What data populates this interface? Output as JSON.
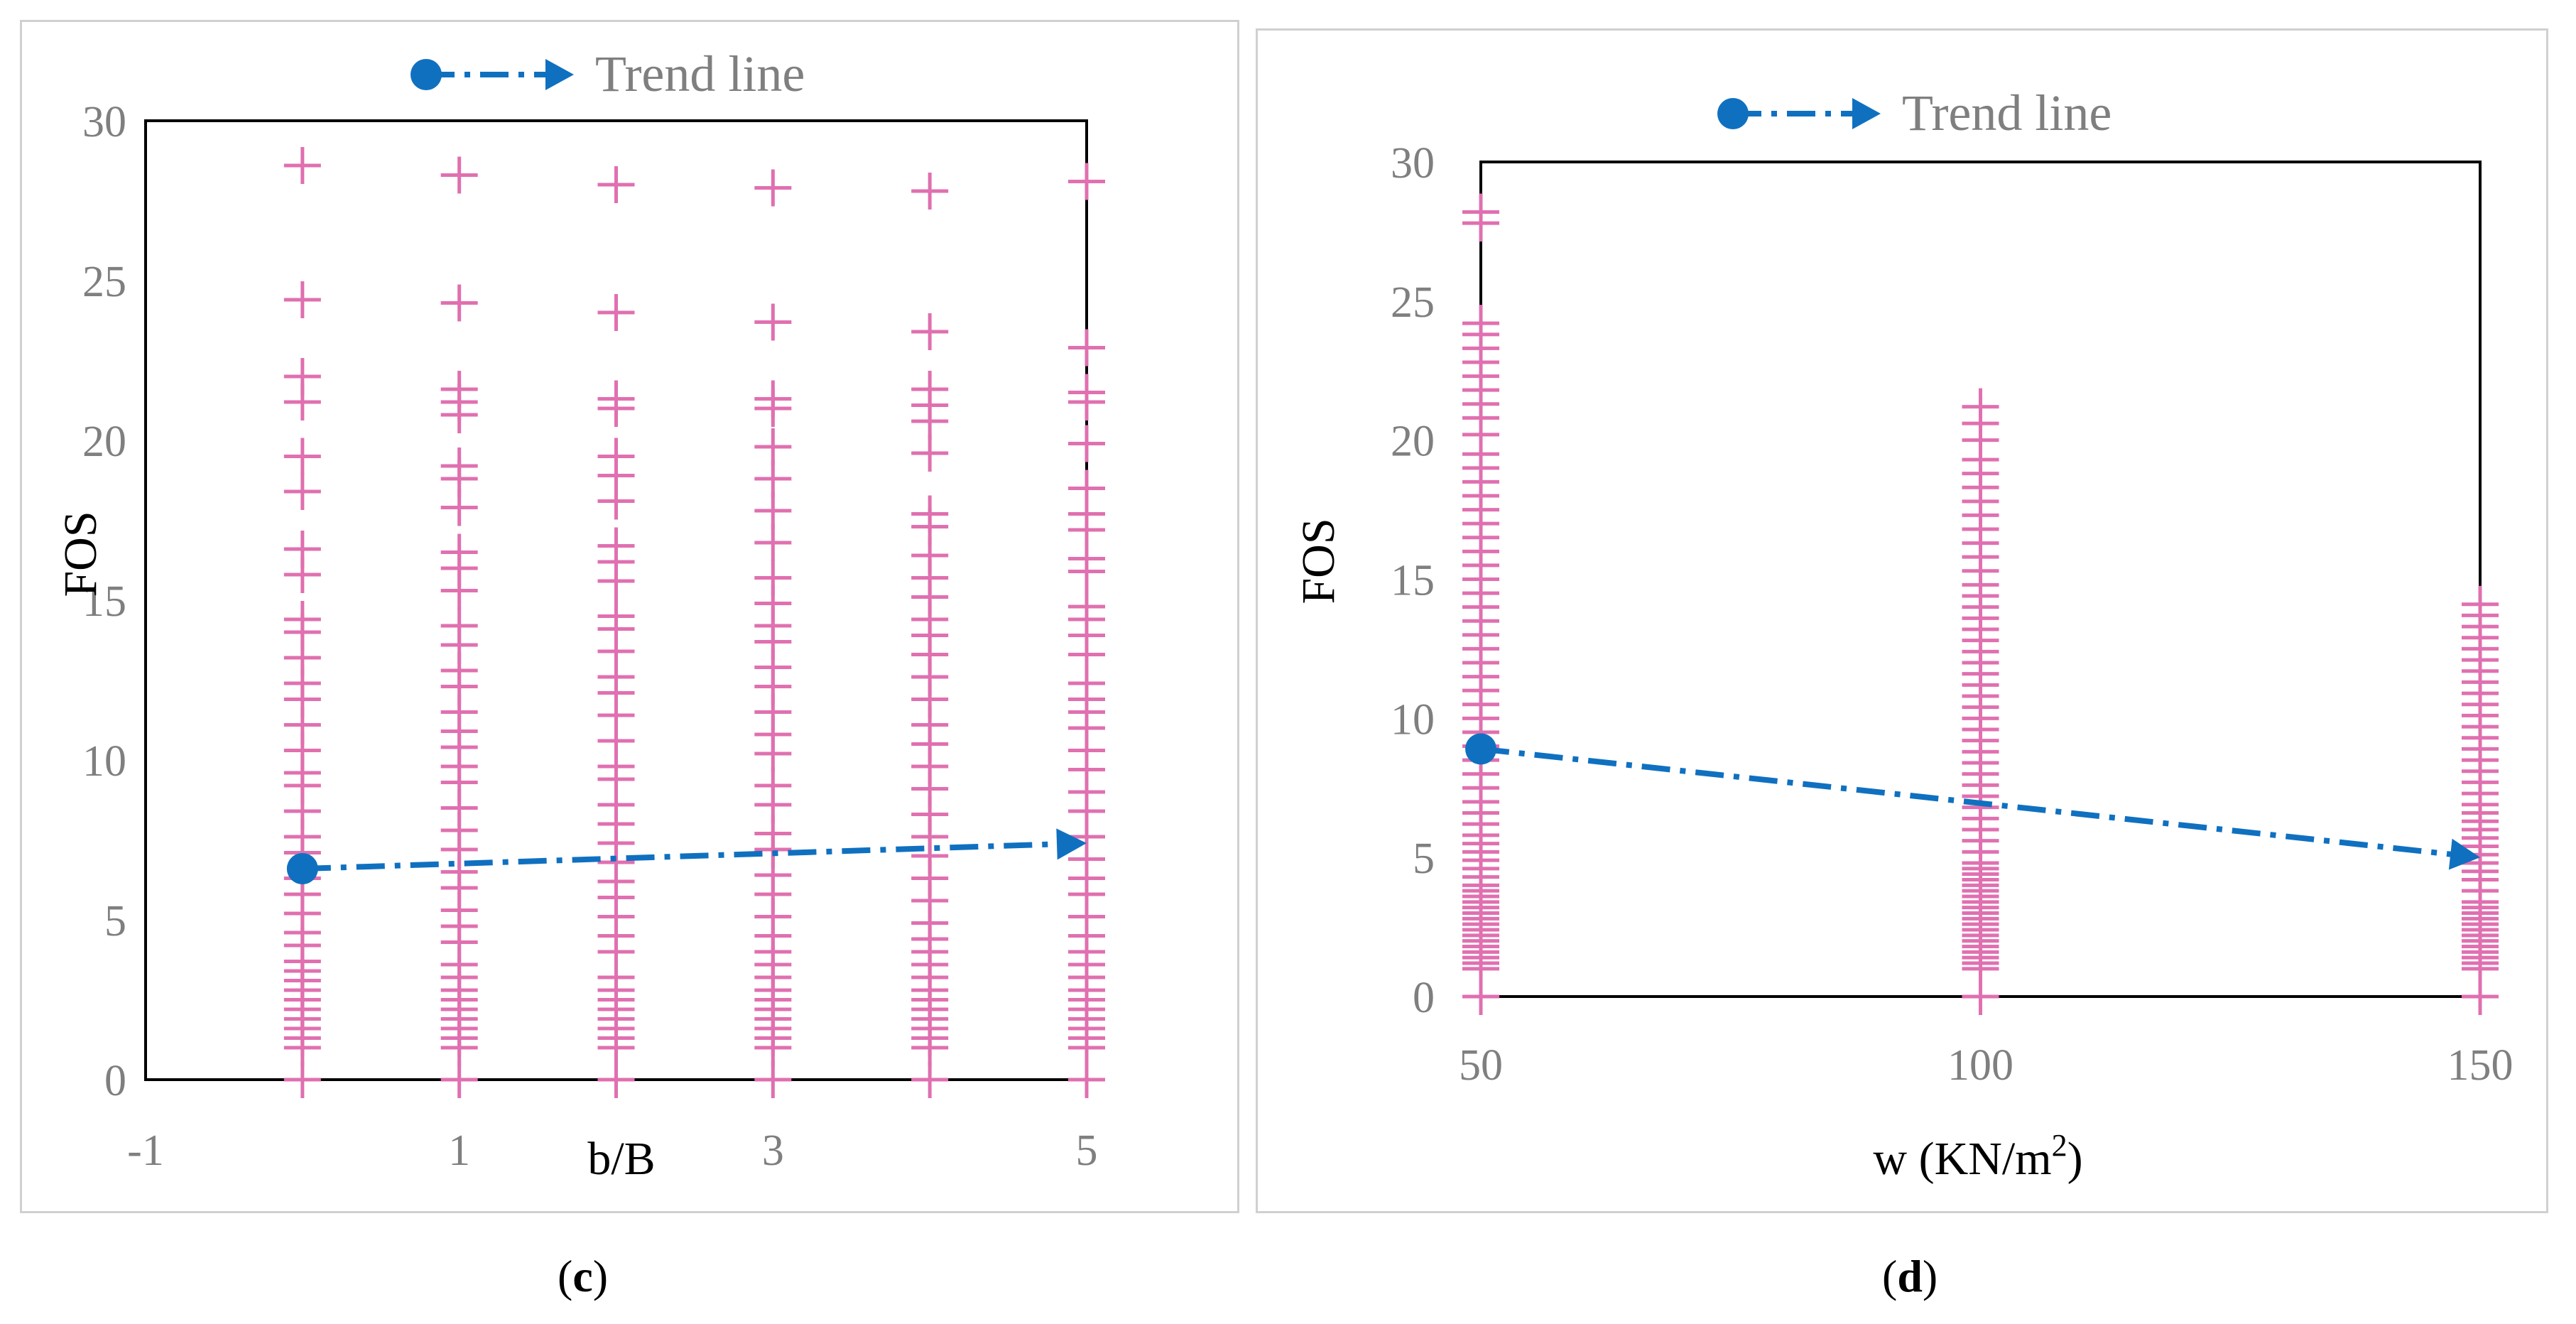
{
  "chart_data": [
    {
      "type": "scatter",
      "panel_label": "c",
      "xlabel": "b/B",
      "ylabel": "FOS",
      "xlim": [
        -1,
        5
      ],
      "ylim": [
        0,
        30
      ],
      "x_ticks": [
        "-1",
        "1",
        "3",
        "5"
      ],
      "y_ticks": [
        "0",
        "5",
        "10",
        "15",
        "20",
        "25",
        "30"
      ],
      "marker_color": "#e070b0",
      "trend_color": "#1070c0",
      "legend": {
        "label": "Trend line",
        "position": "top-center"
      },
      "trend_line": {
        "x": [
          0,
          5
        ],
        "y": [
          6.6,
          7.4
        ]
      },
      "points": [
        {
          "x": 0,
          "y": [
            0,
            1,
            1.3,
            1.6,
            1.9,
            2.2,
            2.5,
            2.8,
            3.1,
            3.4,
            3.7,
            4.2,
            4.6,
            5.2,
            5.8,
            6.3,
            7.1,
            7.6,
            8.4,
            9.2,
            9.6,
            10.3,
            11.1,
            11.9,
            12.4,
            13.2,
            14.0,
            14.4,
            15.8,
            16.6,
            18.4,
            19.5,
            21.2,
            22.0,
            24.4,
            28.6
          ]
        },
        {
          "x": 1,
          "y": [
            0,
            1,
            1.3,
            1.6,
            1.9,
            2.2,
            2.5,
            2.8,
            3.2,
            3.6,
            4.3,
            4.8,
            5.3,
            6.0,
            6.5,
            7.2,
            7.8,
            8.5,
            9.3,
            9.8,
            10.4,
            10.9,
            11.5,
            12.3,
            12.8,
            13.6,
            14.2,
            15.3,
            16.0,
            16.5,
            17.9,
            18.8,
            19.2,
            20.8,
            21.2,
            21.6,
            24.3,
            28.3
          ]
        },
        {
          "x": 2,
          "y": [
            0,
            1,
            1.3,
            1.6,
            1.9,
            2.2,
            2.5,
            2.8,
            3.2,
            4.0,
            4.5,
            5.1,
            5.7,
            6.2,
            6.8,
            7.4,
            8.0,
            8.6,
            9.4,
            9.8,
            10.6,
            11.4,
            12.1,
            12.6,
            13.4,
            14.1,
            14.5,
            15.6,
            16.2,
            16.7,
            18.1,
            18.9,
            19.5,
            21.0,
            21.3,
            24.0,
            28.0
          ]
        },
        {
          "x": 3,
          "y": [
            0,
            1,
            1.3,
            1.6,
            1.9,
            2.2,
            2.5,
            2.8,
            3.2,
            3.6,
            4.0,
            4.5,
            5.1,
            5.8,
            6.4,
            7.2,
            7.7,
            8.6,
            9.2,
            10.2,
            10.8,
            11.5,
            12.3,
            12.9,
            13.7,
            14.2,
            14.9,
            15.7,
            16.8,
            17.8,
            18.8,
            19.8,
            21.0,
            21.3,
            23.7,
            27.9
          ]
        },
        {
          "x": 4,
          "y": [
            0,
            1,
            1.3,
            1.6,
            1.9,
            2.2,
            2.5,
            2.8,
            3.2,
            3.6,
            4.0,
            4.4,
            4.9,
            5.6,
            6.3,
            7.0,
            7.6,
            8.3,
            9.1,
            9.8,
            10.5,
            11.1,
            11.9,
            12.6,
            13.3,
            13.9,
            14.4,
            15.1,
            15.7,
            16.4,
            17.3,
            17.7,
            19.6,
            20.6,
            21.1,
            21.6,
            23.4,
            27.8
          ]
        },
        {
          "x": 5,
          "y": [
            0,
            1,
            1.3,
            1.6,
            1.9,
            2.2,
            2.5,
            2.8,
            3.2,
            3.6,
            4.0,
            4.5,
            5.1,
            5.8,
            6.3,
            6.9,
            7.6,
            8.4,
            9.0,
            9.7,
            10.3,
            11.0,
            11.5,
            11.9,
            12.4,
            13.3,
            13.9,
            14.4,
            14.8,
            15.9,
            16.3,
            17.2,
            17.7,
            18.5,
            19.9,
            21.2,
            21.5,
            22.9,
            28.1
          ]
        }
      ]
    },
    {
      "type": "scatter",
      "panel_label": "d",
      "xlabel": "w (KN/m2)",
      "xlabel_main": "w (KN/m",
      "xlabel_sup": "2",
      "xlabel_end": ")",
      "ylabel": "FOS",
      "xlim": [
        50,
        150
      ],
      "ylim": [
        0,
        30
      ],
      "x_ticks": [
        "50",
        "100",
        "150"
      ],
      "y_ticks": [
        "0",
        "5",
        "10",
        "15",
        "20",
        "25",
        "30"
      ],
      "marker_color": "#e070b0",
      "trend_color": "#1070c0",
      "legend": {
        "label": "Trend line",
        "position": "top-center"
      },
      "trend_line": {
        "x": [
          50,
          150
        ],
        "y": [
          8.9,
          5.0
        ]
      },
      "points": [
        {
          "x": 50,
          "y": [
            0,
            1,
            1.2,
            1.4,
            1.6,
            1.8,
            2.0,
            2.2,
            2.4,
            2.6,
            2.8,
            3.0,
            3.2,
            3.4,
            3.6,
            3.8,
            4.0,
            4.3,
            4.6,
            4.9,
            5.2,
            5.5,
            5.8,
            6.2,
            6.6,
            7.0,
            7.5,
            8.0,
            8.5,
            9.0,
            9.5,
            10.0,
            10.5,
            11.0,
            11.5,
            12.0,
            12.5,
            13.0,
            13.5,
            14.0,
            14.5,
            15.0,
            15.5,
            16.0,
            16.5,
            17.0,
            17.5,
            18.0,
            18.5,
            19.0,
            19.5,
            20.2,
            20.8,
            21.3,
            21.8,
            22.3,
            22.8,
            23.3,
            23.8,
            24.2,
            27.8,
            28.2
          ]
        },
        {
          "x": 100,
          "y": [
            0,
            1,
            1.2,
            1.4,
            1.6,
            1.8,
            2.0,
            2.2,
            2.4,
            2.6,
            2.8,
            3.0,
            3.2,
            3.4,
            3.6,
            3.8,
            4.0,
            4.2,
            4.4,
            4.6,
            4.8,
            5.2,
            5.6,
            6.0,
            6.4,
            6.8,
            7.2,
            7.6,
            8.0,
            8.4,
            8.8,
            9.2,
            9.6,
            10.0,
            10.4,
            10.8,
            11.2,
            11.6,
            12.0,
            12.4,
            12.8,
            13.2,
            13.6,
            14.0,
            14.4,
            14.8,
            15.3,
            15.8,
            16.3,
            16.8,
            17.3,
            17.8,
            18.3,
            18.8,
            19.3,
            20.0,
            20.6,
            21.2
          ]
        },
        {
          "x": 150,
          "y": [
            0,
            1,
            1.2,
            1.4,
            1.6,
            1.8,
            2.0,
            2.2,
            2.4,
            2.6,
            2.8,
            3.0,
            3.2,
            3.4,
            3.8,
            4.2,
            4.5,
            4.8,
            5.1,
            5.4,
            5.7,
            6.0,
            6.3,
            6.6,
            6.9,
            7.3,
            7.7,
            8.1,
            8.5,
            8.9,
            9.3,
            9.7,
            10.1,
            10.5,
            10.9,
            11.3,
            11.7,
            12.1,
            12.5,
            12.9,
            13.3,
            13.7,
            14.1
          ]
        }
      ]
    }
  ]
}
